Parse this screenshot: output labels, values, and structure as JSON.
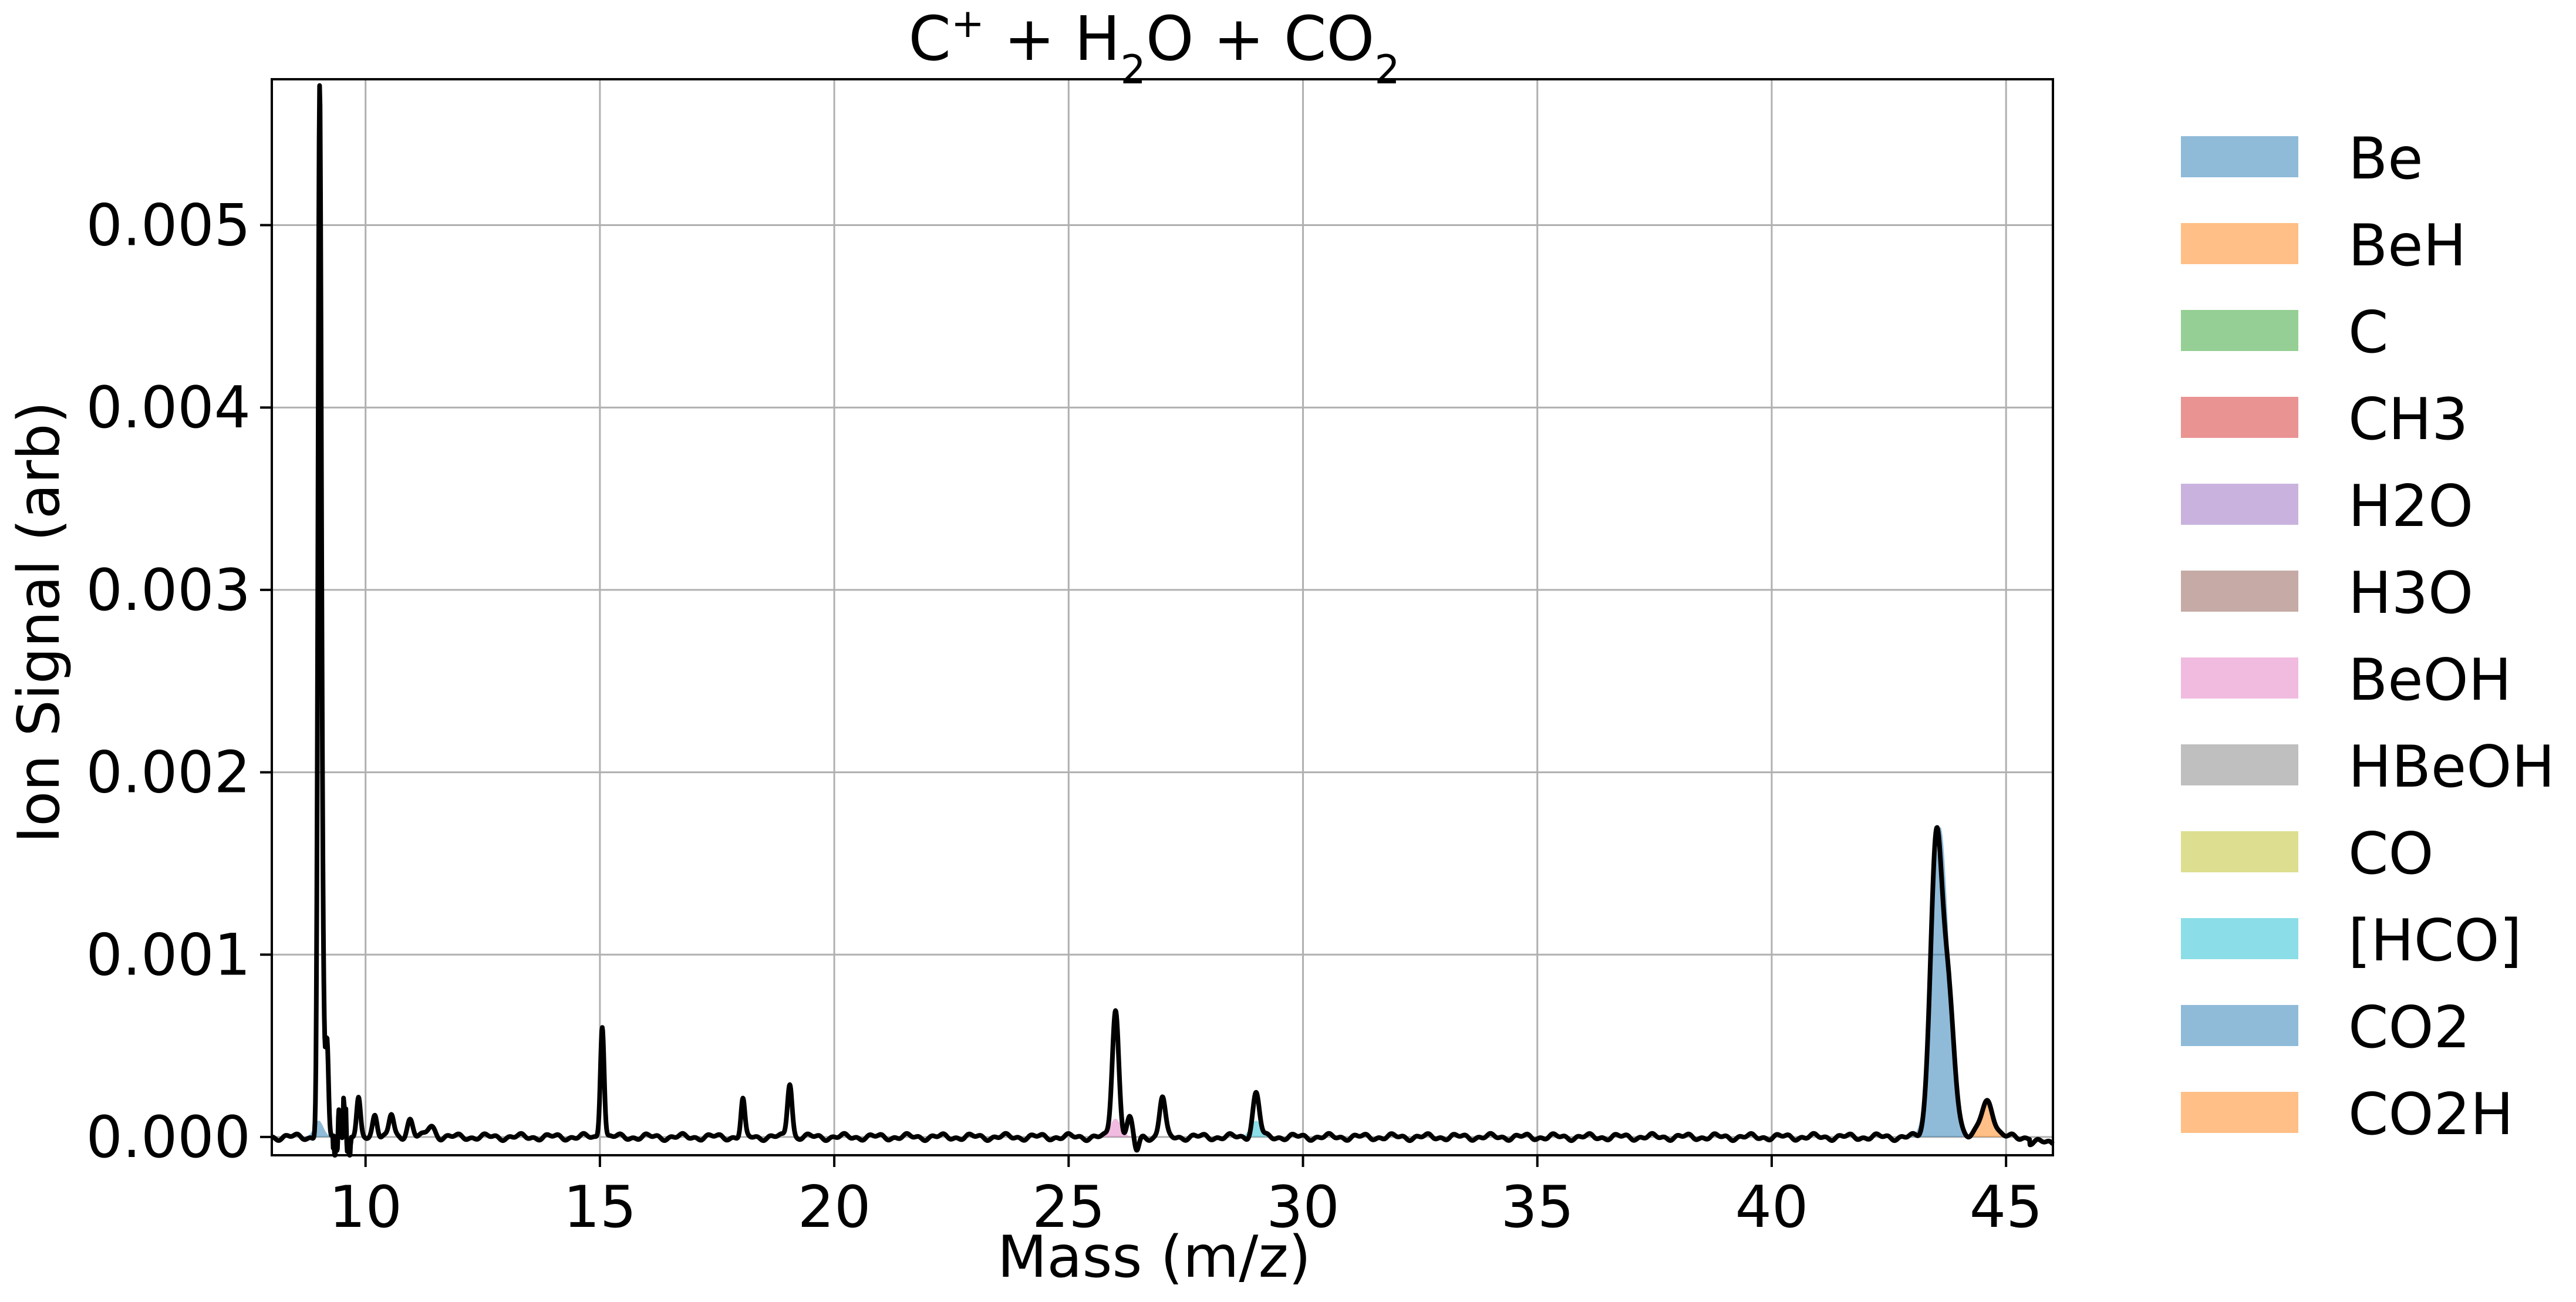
{
  "chart_data": {
    "type": "line",
    "title": {
      "base": "C",
      "sup": "+",
      "rest1": " + H",
      "sub1": "2",
      "rest2": "O + CO",
      "sub2": "2"
    },
    "xlabel": "Mass (m/z)",
    "ylabel": "Ion Signal (arb)",
    "xlim": [
      8,
      46
    ],
    "ylim": [
      -0.0001,
      0.0058
    ],
    "xticks": [
      10,
      15,
      20,
      25,
      30,
      35,
      40,
      45
    ],
    "yticks": [
      0.0,
      0.001,
      0.002,
      0.003,
      0.004,
      0.005
    ],
    "ytick_labels": [
      "0.000",
      "0.001",
      "0.002",
      "0.003",
      "0.004",
      "0.005"
    ],
    "grid": true,
    "legend_position": "outside-right",
    "line_color": "#000000",
    "series": [
      {
        "name": "Be",
        "color": "#1f77b4",
        "center": 9.0,
        "peak": 9e-05,
        "width": 0.1
      },
      {
        "name": "BeH",
        "color": "#ff7f0e",
        "center": 10.0,
        "peak": 0.0,
        "width": 0.1
      },
      {
        "name": "C",
        "color": "#2ca02c",
        "center": 12.0,
        "peak": 0.0,
        "width": 0.1
      },
      {
        "name": "CH3",
        "color": "#d62728",
        "center": 15.0,
        "peak": 0.0,
        "width": 0.1
      },
      {
        "name": "H2O",
        "color": "#9467bd",
        "center": 18.0,
        "peak": 0.0,
        "width": 0.1
      },
      {
        "name": "H3O",
        "color": "#8c564b",
        "center": 19.0,
        "peak": 0.0,
        "width": 0.1
      },
      {
        "name": "BeOH",
        "color": "#e377c2",
        "center": 26.0,
        "peak": 0.0001,
        "width": 0.12
      },
      {
        "name": "HBeOH",
        "color": "#7f7f7f",
        "center": 27.0,
        "peak": 0.0,
        "width": 0.1
      },
      {
        "name": "CO",
        "color": "#bcbd22",
        "center": 28.0,
        "peak": 0.0,
        "width": 0.1
      },
      {
        "name": "[HCO]",
        "color": "#17becf",
        "center": 29.0,
        "peak": 9e-05,
        "width": 0.12
      },
      {
        "name": "CO2",
        "color": "#1f77b4",
        "center": 43.6,
        "peak": 0.0017,
        "width": 0.18
      },
      {
        "name": "CO2H",
        "color": "#ff7f0e",
        "center": 44.6,
        "peak": 0.0002,
        "width": 0.15
      }
    ],
    "total_signal": {
      "peaks": [
        {
          "x": 9.02,
          "y": 0.0055,
          "w": 0.035
        },
        {
          "x": 9.08,
          "y": 0.0008,
          "w": 0.04
        },
        {
          "x": 9.18,
          "y": 0.0005,
          "w": 0.03
        },
        {
          "x": 9.45,
          "y": 0.00025,
          "w": 0.03
        },
        {
          "x": 9.55,
          "y": 0.00028,
          "w": 0.03
        },
        {
          "x": 9.85,
          "y": 0.0002,
          "w": 0.04
        },
        {
          "x": 10.2,
          "y": 0.00013,
          "w": 0.05
        },
        {
          "x": 10.55,
          "y": 0.00012,
          "w": 0.05
        },
        {
          "x": 10.95,
          "y": 0.0001,
          "w": 0.06
        },
        {
          "x": 11.4,
          "y": 6e-05,
          "w": 0.08
        },
        {
          "x": 15.05,
          "y": 0.00062,
          "w": 0.04
        },
        {
          "x": 18.05,
          "y": 0.0002,
          "w": 0.04
        },
        {
          "x": 19.05,
          "y": 0.0003,
          "w": 0.05
        },
        {
          "x": 26.0,
          "y": 0.0007,
          "w": 0.07
        },
        {
          "x": 26.3,
          "y": 0.0001,
          "w": 0.06
        },
        {
          "x": 27.0,
          "y": 0.00022,
          "w": 0.06
        },
        {
          "x": 29.0,
          "y": 0.00024,
          "w": 0.07
        },
        {
          "x": 43.5,
          "y": 0.0015,
          "w": 0.12
        },
        {
          "x": 43.75,
          "y": 0.0008,
          "w": 0.14
        },
        {
          "x": 44.6,
          "y": 0.0002,
          "w": 0.13
        }
      ]
    }
  }
}
